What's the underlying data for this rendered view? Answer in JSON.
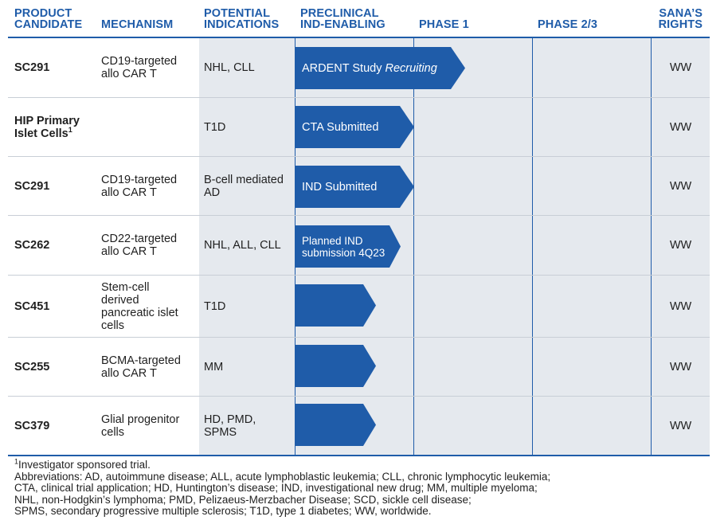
{
  "headers": {
    "candidate": [
      "PRODUCT",
      "CANDIDATE"
    ],
    "mechanism": "MECHANISM",
    "indications": [
      "POTENTIAL",
      "INDICATIONS"
    ],
    "preclinical": [
      "PRECLINICAL",
      "IND-ENABLING"
    ],
    "phase1": "PHASE 1",
    "phase23": "PHASE 2/3",
    "rights": [
      "SANA’S",
      "RIGHTS"
    ]
  },
  "rows": [
    {
      "candidate": "SC291",
      "mechanism": [
        "CD19-targeted",
        "allo CAR T"
      ],
      "indications": [
        "NHL, CLL"
      ],
      "status": "ARDENT Study",
      "status_italic": "Recruiting",
      "progress_phase": 1.43,
      "rights": "WW"
    },
    {
      "candidate_lines": [
        "HIP Primary",
        "Islet Cells"
      ],
      "candidate_sup": "1",
      "mechanism": [],
      "indications": [
        "T1D"
      ],
      "status": "CTA Submitted",
      "progress_phase": 1.0,
      "rights": "WW"
    },
    {
      "candidate": "SC291",
      "mechanism": [
        "CD19-targeted",
        "allo CAR T"
      ],
      "indications": [
        "B-cell mediated",
        "AD"
      ],
      "status": "IND Submitted",
      "progress_phase": 1.0,
      "rights": "WW"
    },
    {
      "candidate": "SC262",
      "mechanism": [
        "CD22-targeted",
        "allo CAR T"
      ],
      "indications": [
        "NHL, ALL, CLL"
      ],
      "status_lines": [
        "Planned IND",
        "submission 4Q23"
      ],
      "progress_phase": 0.88,
      "rights": "WW"
    },
    {
      "candidate": "SC451",
      "mechanism": [
        "Stem-cell",
        "derived",
        "pancreatic islet",
        "cells"
      ],
      "indications": [
        "T1D"
      ],
      "status": "",
      "progress_phase": 0.68,
      "rights": "WW"
    },
    {
      "candidate": "SC255",
      "mechanism": [
        "BCMA-targeted",
        "allo CAR T"
      ],
      "indications": [
        "MM"
      ],
      "status": "",
      "progress_phase": 0.68,
      "rights": "WW"
    },
    {
      "candidate": "SC379",
      "mechanism": [
        "Glial progenitor",
        "cells"
      ],
      "indications": [
        "HD, PMD,",
        "SPMS"
      ],
      "status": "",
      "progress_phase": 0.68,
      "rights": "WW"
    }
  ],
  "footnote": {
    "sup": "1",
    "text": "Investigator sponsored trial.",
    "abbrev_lines": [
      "Abbreviations: AD, autoimmune disease; ALL, acute lymphoblastic leukemia; CLL, chronic lymphocytic leukemia;",
      "CTA, clinical trial application; HD, Huntington’s disease; IND, investigational new drug; MM, multiple myeloma;",
      "NHL, non-Hodgkin’s lymphoma; PMD, Pelizaeus-Merzbacher Disease; SCD, sickle cell disease;",
      "SPMS, secondary progressive multiple sclerosis; T1D, type 1 diabetes; WW, worldwide."
    ]
  },
  "colors": {
    "accent": "#1f5ca9",
    "shade": "#e5e9ee"
  }
}
